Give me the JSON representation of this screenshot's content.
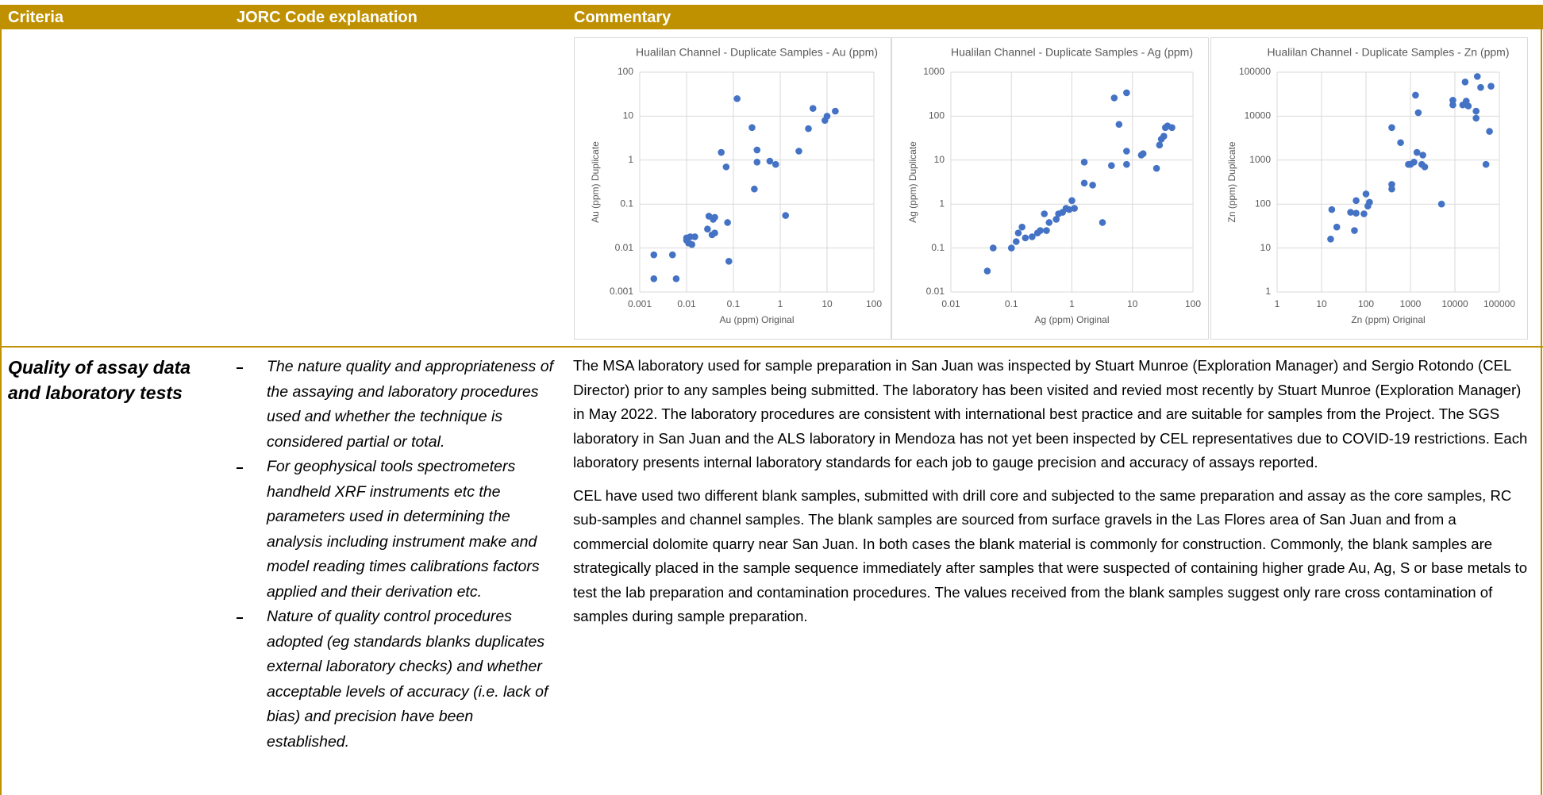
{
  "table": {
    "header": [
      "Criteria",
      "JORC Code explanation",
      "Commentary"
    ],
    "rows": [
      {
        "criteria": "Quality of assay data and laboratory tests",
        "explanation": [
          "The nature quality and appropriateness of the assaying and laboratory procedures used and whether the technique is considered partial or total.",
          "For geophysical tools spectrometers handheld XRF instruments etc the parameters used in determining the analysis including instrument make and model reading times calibrations factors applied and their derivation etc.",
          "Nature of quality control procedures adopted (eg standards blanks duplicates external laboratory checks) and whether acceptable levels of accuracy (i.e. lack of bias) and precision have been established."
        ],
        "commentary": [
          "The MSA laboratory used for sample preparation in San Juan was inspected by Stuart Munroe (Exploration Manager) and Sergio Rotondo (CEL Director) prior to any samples being submitted.  The laboratory has been visited and revied most recently by Stuart Munroe (Exploration Manager) in May 2022.  The laboratory procedures are consistent with international best practice and are suitable for samples from the Project.  The SGS laboratory in San Juan and the ALS laboratory in Mendoza has not yet been inspected by CEL representatives due to COVID-19 restrictions.  Each laboratory presents internal laboratory standards for each job to gauge precision and accuracy of assays reported.",
          "CEL have used two different blank samples, submitted with drill core and subjected to the same preparation and assay as the core samples, RC sub-samples and channel samples.  The blank samples are sourced from surface gravels in the Las Flores area of San Juan and from a commercial dolomite quarry near San Juan.  In both cases the blank material is commonly for construction.  Commonly, the blank samples are strategically placed in the sample sequence immediately after samples that were suspected of containing higher grade Au, Ag, S or base metals to test the lab preparation and contamination procedures. The values received from the blank samples suggest only rare cross contamination of samples during sample preparation."
        ]
      }
    ]
  },
  "chart_data": [
    {
      "type": "scatter",
      "title": "Hualilan Channel - Duplicate Samples - Au (ppm)",
      "x_label": "Au (ppm) Original",
      "y_label": "Au (ppm) Duplicate",
      "color": "#4472c4",
      "xscale": "log",
      "yscale": "log",
      "grid": true,
      "xlim": [
        0.001,
        100
      ],
      "ylim": [
        0.001,
        100
      ],
      "xticks": [
        0.001,
        0.01,
        0.1,
        1,
        10,
        100
      ],
      "yticks": [
        0.001,
        0.01,
        0.1,
        1,
        10,
        100
      ],
      "x": [
        0.002,
        0.002,
        0.005,
        0.006,
        0.01,
        0.01,
        0.011,
        0.012,
        0.013,
        0.015,
        0.028,
        0.03,
        0.035,
        0.037,
        0.04,
        0.04,
        0.055,
        0.07,
        0.075,
        0.08,
        0.12,
        0.25,
        0.28,
        0.32,
        0.32,
        0.6,
        0.8,
        1.3,
        2.5,
        4,
        5,
        9,
        10,
        15
      ],
      "values": [
        0.007,
        0.002,
        0.007,
        0.002,
        0.015,
        0.017,
        0.013,
        0.018,
        0.012,
        0.018,
        0.027,
        0.053,
        0.02,
        0.045,
        0.022,
        0.05,
        1.5,
        0.7,
        0.038,
        0.005,
        25,
        5.5,
        0.22,
        1.7,
        0.9,
        0.95,
        0.8,
        0.055,
        1.6,
        5.2,
        15,
        8,
        10,
        13
      ]
    },
    {
      "type": "scatter",
      "title": "Hualilan Channel - Duplicate Samples - Ag (ppm)",
      "x_label": "Ag (ppm) Original",
      "y_label": "Ag (ppm) Duplicate",
      "color": "#4472c4",
      "xscale": "log",
      "yscale": "log",
      "grid": true,
      "xlim": [
        0.01,
        100
      ],
      "ylim": [
        0.01,
        1000
      ],
      "xticks": [
        0.01,
        0.1,
        1,
        10,
        100
      ],
      "yticks": [
        0.01,
        0.1,
        1,
        10,
        100,
        1000
      ],
      "x": [
        0.04,
        0.05,
        0.1,
        0.12,
        0.13,
        0.15,
        0.17,
        0.22,
        0.27,
        0.3,
        0.35,
        0.38,
        0.42,
        0.55,
        0.6,
        0.7,
        0.8,
        0.9,
        1,
        1.1,
        1.6,
        1.6,
        2.2,
        3.2,
        4.5,
        5,
        6,
        8,
        8,
        8,
        14,
        15,
        25,
        28,
        30,
        33,
        35,
        38,
        45
      ],
      "values": [
        0.03,
        0.1,
        0.1,
        0.14,
        0.22,
        0.3,
        0.17,
        0.18,
        0.22,
        0.25,
        0.6,
        0.25,
        0.38,
        0.45,
        0.6,
        0.65,
        0.8,
        0.75,
        1.2,
        0.8,
        9,
        3,
        2.7,
        0.38,
        7.5,
        260,
        65,
        340,
        16,
        8,
        13,
        14,
        6.5,
        22,
        30,
        35,
        55,
        60,
        55
      ]
    },
    {
      "type": "scatter",
      "title": "Hualilan Channel - Duplicate Samples - Zn (ppm)",
      "x_label": "Zn (ppm) Original",
      "y_label": "Zn (ppm) Duplicate",
      "color": "#4472c4",
      "xscale": "log",
      "yscale": "log",
      "grid": true,
      "xlim": [
        1,
        100000
      ],
      "ylim": [
        1,
        100000
      ],
      "xticks": [
        1,
        10,
        100,
        1000,
        10000,
        100000
      ],
      "yticks": [
        1,
        10,
        100,
        1000,
        10000,
        100000
      ],
      "x": [
        16,
        17,
        22,
        45,
        55,
        60,
        60,
        90,
        100,
        110,
        120,
        380,
        380,
        380,
        600,
        900,
        1000,
        1200,
        1300,
        1400,
        1500,
        1800,
        1900,
        2100,
        5000,
        9000,
        9000,
        15000,
        17000,
        18000,
        20000,
        30000,
        30000,
        32000,
        38000,
        50000,
        60000,
        65000
      ],
      "values": [
        16,
        75,
        30,
        65,
        25,
        120,
        62,
        60,
        170,
        90,
        110,
        220,
        280,
        5500,
        2500,
        800,
        800,
        900,
        30000,
        1500,
        12000,
        800,
        1300,
        700,
        100,
        18000,
        23000,
        18000,
        60000,
        22000,
        17000,
        9000,
        13000,
        80000,
        45000,
        800,
        4500,
        48000
      ]
    }
  ]
}
